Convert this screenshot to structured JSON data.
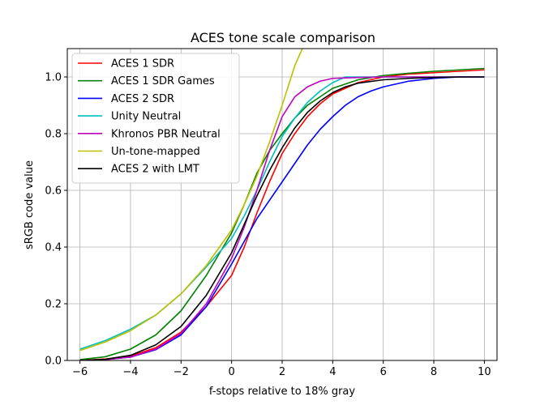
{
  "chart_data": {
    "type": "line",
    "title": "ACES tone scale comparison",
    "xlabel": "f-stops relative to 18% gray",
    "ylabel": "sRGB code value",
    "xlim": [
      -6.5,
      10.5
    ],
    "ylim": [
      0.0,
      1.1
    ],
    "xticks": [
      -6,
      -4,
      -2,
      0,
      2,
      4,
      6,
      8,
      10
    ],
    "yticks": [
      0.0,
      0.2,
      0.4,
      0.6,
      0.8,
      1.0
    ],
    "xtick_labels": [
      "−6",
      "−4",
      "−2",
      "0",
      "2",
      "4",
      "6",
      "8",
      "10"
    ],
    "ytick_labels": [
      "0.0",
      "0.2",
      "0.4",
      "0.6",
      "0.8",
      "1.0"
    ],
    "grid": true,
    "legend_position": "upper-left",
    "series": [
      {
        "name": "ACES 1 SDR",
        "color": "#ff0000",
        "x": [
          -6,
          -5,
          -4,
          -3,
          -2,
          -1,
          0,
          0.5,
          1,
          1.5,
          2,
          2.5,
          3,
          3.5,
          4,
          5,
          6,
          7,
          8,
          9,
          10
        ],
        "y": [
          0.0,
          0.005,
          0.015,
          0.045,
          0.1,
          0.19,
          0.3,
          0.4,
          0.52,
          0.63,
          0.73,
          0.8,
          0.86,
          0.905,
          0.94,
          0.98,
          1.0,
          1.01,
          1.015,
          1.02,
          1.025
        ]
      },
      {
        "name": "ACES 1 SDR Games",
        "color": "#008000",
        "x": [
          -6,
          -5,
          -4,
          -3,
          -2,
          -1,
          0,
          0.5,
          1,
          1.5,
          2,
          2.5,
          3,
          3.5,
          4,
          5,
          6,
          7,
          8,
          9,
          10
        ],
        "y": [
          0.003,
          0.013,
          0.04,
          0.09,
          0.175,
          0.3,
          0.45,
          0.55,
          0.66,
          0.74,
          0.8,
          0.855,
          0.9,
          0.93,
          0.96,
          0.99,
          1.005,
          1.013,
          1.02,
          1.025,
          1.03
        ]
      },
      {
        "name": "ACES 2 SDR",
        "color": "#0000ff",
        "x": [
          -6,
          -5,
          -4,
          -3,
          -2,
          -1,
          0,
          1,
          2,
          2.5,
          3,
          3.5,
          4,
          4.5,
          5,
          5.5,
          6,
          7,
          8,
          9,
          10
        ],
        "y": [
          0.0,
          0.003,
          0.012,
          0.038,
          0.09,
          0.19,
          0.34,
          0.5,
          0.63,
          0.695,
          0.76,
          0.815,
          0.86,
          0.9,
          0.93,
          0.95,
          0.965,
          0.985,
          0.995,
          1.0,
          1.0
        ]
      },
      {
        "name": "Unity Neutral",
        "color": "#00bfbf",
        "x": [
          -6,
          -5,
          -4,
          -3,
          -2,
          -1,
          0,
          0.5,
          1,
          1.5,
          2,
          2.5,
          3,
          3.5,
          4,
          4.5,
          5,
          6,
          7,
          8,
          9,
          10
        ],
        "y": [
          0.04,
          0.07,
          0.11,
          0.16,
          0.235,
          0.33,
          0.43,
          0.51,
          0.6,
          0.7,
          0.79,
          0.855,
          0.91,
          0.95,
          0.98,
          1.0,
          1.0,
          1.0,
          1.0,
          1.0,
          1.0,
          1.0
        ]
      },
      {
        "name": "Khronos PBR Neutral",
        "color": "#bf00bf",
        "x": [
          -6,
          -5,
          -4,
          -3,
          -2,
          -1,
          0,
          0.5,
          1,
          1.5,
          2,
          2.5,
          3,
          3.5,
          4,
          5,
          6,
          7,
          8,
          9,
          10
        ],
        "y": [
          0.0,
          0.003,
          0.012,
          0.04,
          0.095,
          0.2,
          0.36,
          0.47,
          0.6,
          0.74,
          0.86,
          0.93,
          0.965,
          0.985,
          0.995,
          0.998,
          1.0,
          1.0,
          1.0,
          1.0,
          1.0
        ]
      },
      {
        "name": "Un-tone-mapped",
        "color": "#bfbf00",
        "x": [
          -6,
          -5,
          -4,
          -3,
          -2,
          -1,
          0,
          0.5,
          1,
          1.5,
          2,
          2.5,
          2.8
        ],
        "y": [
          0.035,
          0.065,
          0.105,
          0.16,
          0.235,
          0.335,
          0.46,
          0.55,
          0.65,
          0.77,
          0.9,
          1.04,
          1.1
        ]
      },
      {
        "name": "ACES 2 with LMT",
        "color": "#000000",
        "x": [
          -6,
          -5,
          -4,
          -3,
          -2,
          -1,
          0,
          0.5,
          1,
          1.5,
          2,
          2.5,
          3,
          3.5,
          4,
          4.5,
          5,
          6,
          7,
          8,
          9,
          10
        ],
        "y": [
          0.0,
          0.004,
          0.018,
          0.055,
          0.12,
          0.23,
          0.38,
          0.48,
          0.58,
          0.67,
          0.75,
          0.82,
          0.875,
          0.915,
          0.945,
          0.965,
          0.978,
          0.99,
          0.995,
          0.998,
          1.0,
          1.0
        ]
      }
    ]
  }
}
